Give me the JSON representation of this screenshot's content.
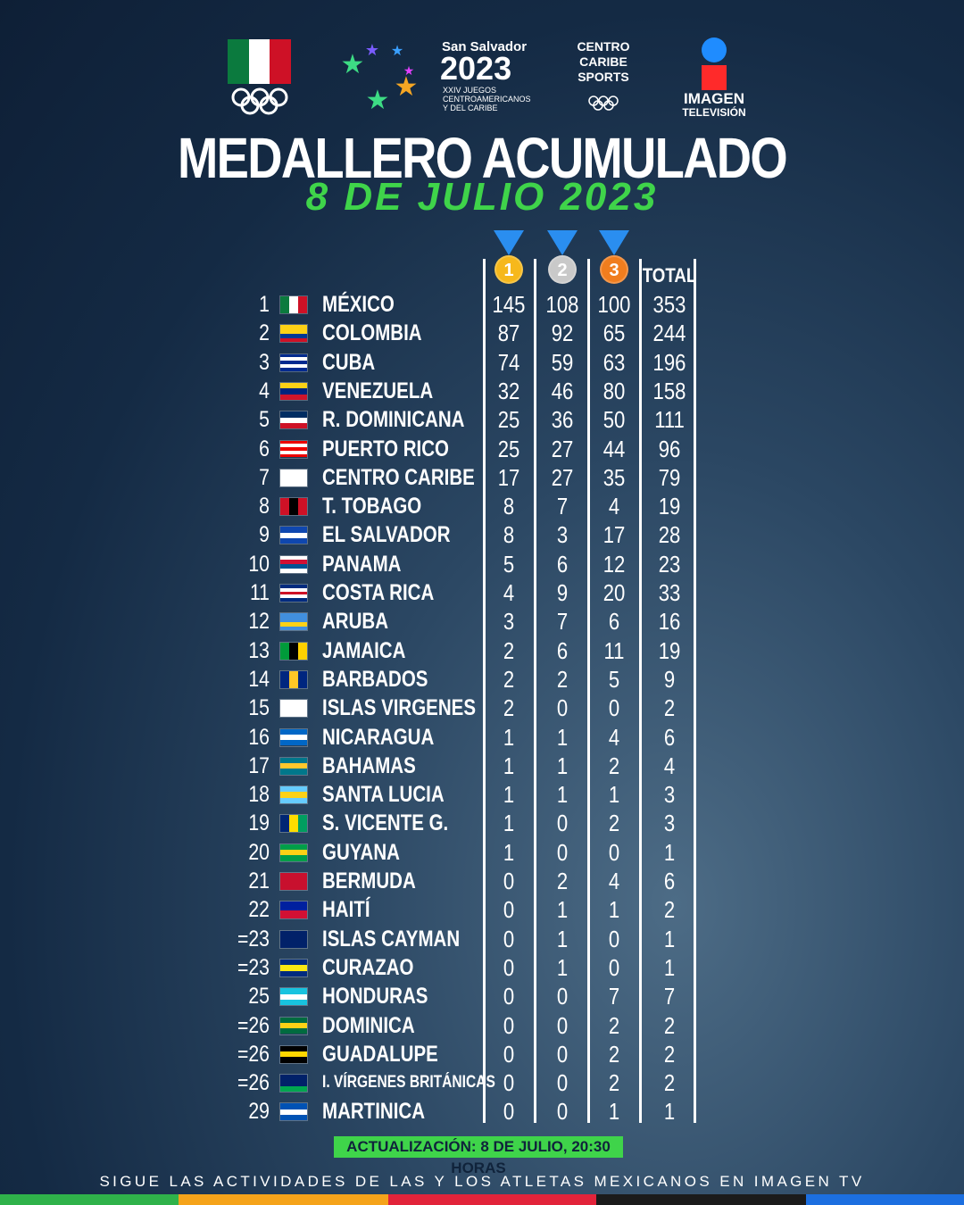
{
  "header": {
    "logo_city": "San Salvador",
    "logo_year": "2023",
    "logo_description": [
      "XXIV JUEGOS",
      "CENTROAMERICANOS",
      "Y DEL CARIBE"
    ],
    "partner": [
      "CENTRO",
      "CARIBE",
      "SPORTS"
    ],
    "broadcaster": "IMAGEN",
    "broadcaster_sub": "TELEVISIÓN"
  },
  "title": "MEDALLERO ACUMULADO",
  "subtitle": "8 DE JULIO 2023",
  "table": {
    "columns": [
      1,
      2,
      3,
      "TOTAL"
    ],
    "rows": [
      [
        1,
        "MÉXICO",
        145,
        108,
        100,
        353
      ],
      [
        2,
        "COLOMBIA",
        87,
        92,
        65,
        244
      ],
      [
        3,
        "CUBA",
        74,
        59,
        63,
        196
      ],
      [
        4,
        "VENEZUELA",
        32,
        46,
        80,
        158
      ],
      [
        5,
        "R. DOMINICANA",
        25,
        36,
        50,
        111
      ],
      [
        6,
        "PUERTO RICO",
        25,
        27,
        44,
        96
      ],
      [
        7,
        "CENTRO CARIBE",
        17,
        27,
        35,
        79
      ],
      [
        8,
        "T. TOBAGO",
        8,
        7,
        4,
        19
      ],
      [
        9,
        "EL SALVADOR",
        8,
        3,
        17,
        28
      ],
      [
        10,
        "PANAMA",
        5,
        6,
        12,
        23
      ],
      [
        11,
        "COSTA RICA",
        4,
        9,
        20,
        33
      ],
      [
        12,
        "ARUBA",
        3,
        7,
        6,
        16
      ],
      [
        13,
        "JAMAICA",
        2,
        6,
        11,
        19
      ],
      [
        14,
        "BARBADOS",
        2,
        2,
        5,
        9
      ],
      [
        15,
        "ISLAS VIRGENES",
        2,
        0,
        0,
        2
      ],
      [
        16,
        "NICARAGUA",
        1,
        1,
        4,
        6
      ],
      [
        17,
        "BAHAMAS",
        1,
        1,
        2,
        4
      ],
      [
        18,
        "SANTA LUCIA",
        1,
        1,
        1,
        3
      ],
      [
        19,
        "S. VICENTE G.",
        1,
        0,
        2,
        3
      ],
      [
        20,
        "GUYANA",
        1,
        0,
        0,
        1
      ],
      [
        21,
        "BERMUDA",
        0,
        2,
        4,
        6
      ],
      [
        22,
        "HAITÍ",
        0,
        1,
        1,
        2
      ],
      [
        "=23",
        "ISLAS CAYMAN",
        0,
        1,
        0,
        1
      ],
      [
        "=23",
        "CURAZAO",
        0,
        1,
        0,
        1
      ],
      [
        25,
        "HONDURAS",
        0,
        0,
        7,
        7
      ],
      [
        "=26",
        "DOMINICA",
        0,
        0,
        2,
        2
      ],
      [
        "=26",
        "GUADALUPE",
        0,
        0,
        2,
        2
      ],
      [
        "=26",
        "I. VÍRGENES BRITÁNICAS",
        0,
        0,
        2,
        2
      ],
      [
        29,
        "MARTINICA",
        0,
        0,
        1,
        1
      ]
    ]
  },
  "update_note": "ACTUALIZACIÓN: 8 DE JULIO, 20:30 HORAS",
  "footer": "SIGUE LAS ACTIVIDADES DE LAS Y LOS  ATLETAS MEXICANOS EN IMAGEN TV"
}
